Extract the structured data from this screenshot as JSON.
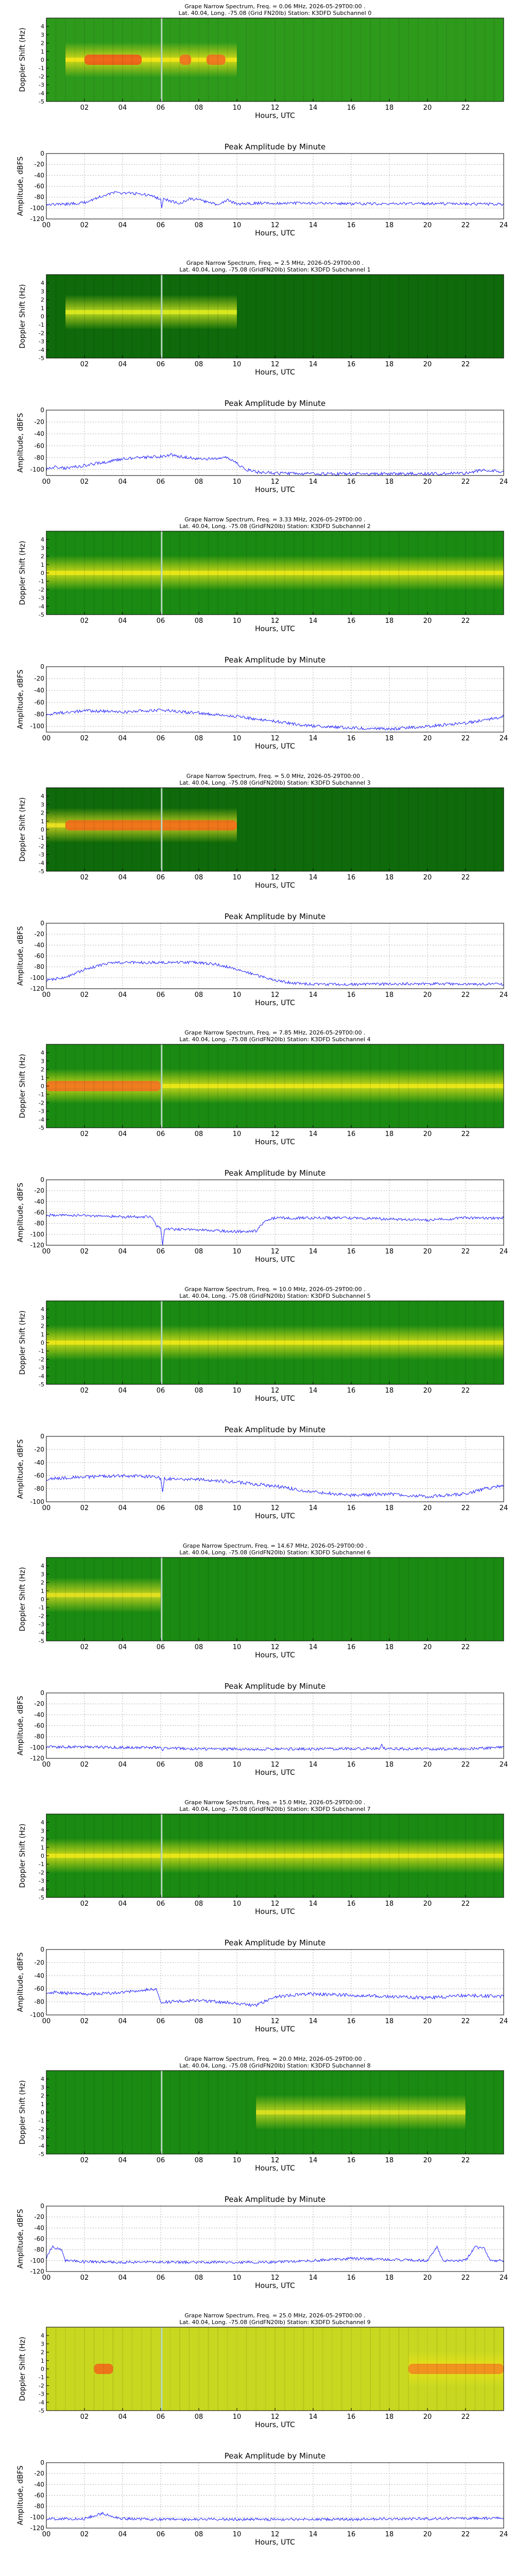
{
  "x_axis": {
    "label": "Hours, UTC",
    "range": [
      0,
      24
    ],
    "spectrum_ticks": [
      "02",
      "04",
      "06",
      "08",
      "10",
      "12",
      "14",
      "16",
      "18",
      "20",
      "22"
    ],
    "amplitude_ticks": [
      "00",
      "02",
      "04",
      "06",
      "08",
      "10",
      "12",
      "14",
      "16",
      "18",
      "20",
      "22",
      "24"
    ]
  },
  "spectrum_axis": {
    "label": "Doppler Shift (Hz)",
    "range": [
      -5,
      5
    ],
    "ticks": [
      "4",
      "3",
      "2",
      "1",
      "0",
      "-1",
      "-2",
      "-3",
      "-4",
      "-5"
    ]
  },
  "amplitude_axis": {
    "label": "Amplitude, dBFS"
  },
  "amplitude_title": "Peak Amplitude by Minute",
  "chart_data": [
    {
      "type": "heatmap",
      "title": "Grape Narrow Spectrum, Freq. = 0.06 MHz, 2026-05-29T00:00 .",
      "subtitle": "Lat. 40.04, Long. -75.08 (Grid FN20lb) Station: K3DFD Subchannel 0",
      "xlabel": "Hours, UTC",
      "ylabel": "Doppler Shift (Hz)",
      "xlim": [
        0,
        24
      ],
      "ylim": [
        -5,
        5
      ],
      "colors": [
        "#2e9a1c",
        "#f0e418"
      ],
      "band": {
        "hours": [
          1,
          10
        ],
        "doppler_hz": 0.0
      },
      "hotspots": [
        {
          "hours": [
            2,
            5
          ],
          "color": "#f05a1a"
        },
        {
          "hours": [
            7,
            7.6
          ],
          "color": "#f07020"
        },
        {
          "hours": [
            8.4,
            9.4
          ],
          "color": "#f07020"
        }
      ]
    },
    {
      "type": "line",
      "title": "Peak Amplitude by Minute",
      "xlabel": "Hours, UTC",
      "ylabel": "Amplitude, dBFS",
      "xlim": [
        0,
        24
      ],
      "ylim": [
        -120,
        0
      ],
      "y_ticks": [
        0,
        -20,
        -40,
        -60,
        -80,
        -100,
        -120
      ],
      "series": [
        {
          "x": [
            0,
            1,
            2,
            3,
            3.5,
            4,
            5,
            5.5,
            6,
            6.05,
            6.15,
            6.3,
            7,
            7.5,
            8,
            9,
            9.5,
            10,
            11,
            13,
            16,
            20,
            24
          ],
          "y": [
            -93,
            -93,
            -90,
            -77,
            -72,
            -72,
            -74,
            -78,
            -83,
            -100,
            -82,
            -85,
            -92,
            -83,
            -85,
            -94,
            -85,
            -93,
            -91,
            -91,
            -92,
            -92,
            -93
          ]
        }
      ]
    },
    {
      "type": "heatmap",
      "title": "Grape Narrow Spectrum, Freq. = 2.5 MHz, 2026-05-29T00:00 .",
      "subtitle": "Lat. 40.04, Long. -75.08 (GridFN20lb) Station: K3DFD Subchannel 1",
      "xlabel": "Hours, UTC",
      "ylabel": "Doppler Shift (Hz)",
      "xlim": [
        0,
        24
      ],
      "ylim": [
        -5,
        5
      ],
      "colors": [
        "#0e6a0a",
        "#d8e820"
      ],
      "band": {
        "hours": [
          1,
          10
        ],
        "doppler_hz": 0.5
      },
      "hotspots": []
    },
    {
      "type": "line",
      "title": "Peak Amplitude by Minute",
      "xlabel": "Hours, UTC",
      "ylabel": "Amplitude, dBFS",
      "xlim": [
        0,
        24
      ],
      "ylim": [
        -110,
        0
      ],
      "y_ticks": [
        0,
        -20,
        -40,
        -60,
        -80,
        -100
      ],
      "series": [
        {
          "x": [
            0,
            0.5,
            1,
            2,
            3,
            4,
            5,
            6,
            6.5,
            7,
            8,
            9,
            9.5,
            10,
            10.5,
            11,
            12,
            14,
            16,
            20,
            22,
            23,
            24
          ],
          "y": [
            -100,
            -95,
            -98,
            -93,
            -88,
            -82,
            -80,
            -78,
            -75,
            -78,
            -82,
            -82,
            -80,
            -90,
            -100,
            -104,
            -106,
            -107,
            -107,
            -107,
            -106,
            -100,
            -104
          ]
        }
      ]
    },
    {
      "type": "heatmap",
      "title": "Grape Narrow Spectrum, Freq. = 3.33 MHz, 2026-05-29T00:00 .",
      "subtitle": "Lat. 40.04, Long. -75.08 (GridFN20lb) Station: K3DFD Subchannel 2",
      "xlabel": "Hours, UTC",
      "ylabel": "Doppler Shift (Hz)",
      "xlim": [
        0,
        24
      ],
      "ylim": [
        -5,
        5
      ],
      "colors": [
        "#1a8a12",
        "#e8e618"
      ],
      "band": {
        "hours": [
          0,
          24
        ],
        "doppler_hz": 0.0
      },
      "hotspots": []
    },
    {
      "type": "line",
      "title": "Peak Amplitude by Minute",
      "xlabel": "Hours, UTC",
      "ylabel": "Amplitude, dBFS",
      "xlim": [
        0,
        24
      ],
      "ylim": [
        -110,
        0
      ],
      "y_ticks": [
        0,
        -20,
        -40,
        -60,
        -80,
        -100
      ],
      "series": [
        {
          "x": [
            0,
            2,
            4,
            6,
            8,
            10,
            12,
            14,
            16,
            18,
            20,
            22,
            24
          ],
          "y": [
            -80,
            -74,
            -76,
            -73,
            -78,
            -84,
            -92,
            -100,
            -103,
            -105,
            -100,
            -95,
            -84
          ]
        }
      ]
    },
    {
      "type": "heatmap",
      "title": "Grape Narrow Spectrum, Freq. = 5.0 MHz, 2026-05-29T00:00 .",
      "subtitle": "Lat. 40.04, Long. -75.08 (GridFN20lb) Station: K3DFD Subchannel 3",
      "xlabel": "Hours, UTC",
      "ylabel": "Doppler Shift (Hz)",
      "xlim": [
        0,
        24
      ],
      "ylim": [
        -5,
        5
      ],
      "colors": [
        "#0e6a0a",
        "#e8e020"
      ],
      "band": {
        "hours": [
          0,
          10
        ],
        "doppler_hz": 0.5
      },
      "hotspots": [
        {
          "hours": [
            1,
            10
          ],
          "color": "#f06a1a"
        }
      ]
    },
    {
      "type": "line",
      "title": "Peak Amplitude by Minute",
      "xlabel": "Hours, UTC",
      "ylabel": "Amplitude, dBFS",
      "xlim": [
        0,
        24
      ],
      "ylim": [
        -120,
        0
      ],
      "y_ticks": [
        0,
        -20,
        -40,
        -60,
        -80,
        -100,
        -120
      ],
      "series": [
        {
          "x": [
            0,
            1,
            2,
            3,
            4,
            6,
            8,
            9,
            10,
            11,
            12,
            13,
            14,
            16,
            20,
            24
          ],
          "y": [
            -104,
            -100,
            -85,
            -75,
            -72,
            -72,
            -72,
            -76,
            -84,
            -95,
            -105,
            -110,
            -112,
            -112,
            -111,
            -112
          ]
        }
      ]
    },
    {
      "type": "heatmap",
      "title": "Grape Narrow Spectrum, Freq. = 7.85 MHz, 2026-05-29T00:00 .",
      "subtitle": "Lat. 40.04, Long. -75.08 (GridFN20lb) Station: K3DFD Subchannel 4",
      "xlabel": "Hours, UTC",
      "ylabel": "Doppler Shift (Hz)",
      "xlim": [
        0,
        24
      ],
      "ylim": [
        -5,
        5
      ],
      "colors": [
        "#1a8a12",
        "#e8e618"
      ],
      "band": {
        "hours": [
          0,
          24
        ],
        "doppler_hz": 0.0
      },
      "hotspots": [
        {
          "hours": [
            0,
            6
          ],
          "color": "#f07020"
        }
      ]
    },
    {
      "type": "line",
      "title": "Peak Amplitude by Minute",
      "xlabel": "Hours, UTC",
      "ylabel": "Amplitude, dBFS",
      "xlim": [
        0,
        24
      ],
      "ylim": [
        -120,
        0
      ],
      "y_ticks": [
        0,
        -20,
        -40,
        -60,
        -80,
        -100,
        -120
      ],
      "series": [
        {
          "x": [
            0,
            2,
            4,
            5.5,
            5.8,
            6,
            6.1,
            6.2,
            8,
            10,
            11,
            11.5,
            12,
            14,
            16,
            18,
            20,
            22,
            24
          ],
          "y": [
            -65,
            -65,
            -68,
            -68,
            -85,
            -88,
            -120,
            -90,
            -92,
            -95,
            -94,
            -75,
            -70,
            -70,
            -70,
            -72,
            -74,
            -70,
            -70
          ]
        }
      ]
    },
    {
      "type": "heatmap",
      "title": "Grape Narrow Spectrum, Freq. = 10.0 MHz, 2026-05-29T00:00 .",
      "subtitle": "Lat. 40.04, Long. -75.08 (GridFN20lb) Station: K3DFD Subchannel 5",
      "xlabel": "Hours, UTC",
      "ylabel": "Doppler Shift (Hz)",
      "xlim": [
        0,
        24
      ],
      "ylim": [
        -5,
        5
      ],
      "colors": [
        "#1a8a12",
        "#e8e618"
      ],
      "band": {
        "hours": [
          0,
          24
        ],
        "doppler_hz": 0.0
      },
      "hotspots": []
    },
    {
      "type": "line",
      "title": "Peak Amplitude by Minute",
      "xlabel": "Hours, UTC",
      "ylabel": "Amplitude, dBFS",
      "xlim": [
        0,
        24
      ],
      "ylim": [
        -100,
        0
      ],
      "y_ticks": [
        0,
        -20,
        -40,
        -60,
        -80,
        -100
      ],
      "series": [
        {
          "x": [
            0,
            2,
            4,
            5.8,
            6,
            6.1,
            6.2,
            8,
            10,
            12,
            14,
            16,
            18,
            20,
            22,
            23,
            24
          ],
          "y": [
            -65,
            -62,
            -60,
            -62,
            -64,
            -85,
            -65,
            -66,
            -70,
            -76,
            -85,
            -90,
            -88,
            -92,
            -88,
            -80,
            -75
          ]
        }
      ]
    },
    {
      "type": "heatmap",
      "title": "Grape Narrow Spectrum, Freq. = 14.67 MHz, 2026-05-29T00:00 .",
      "subtitle": "Lat. 40.04, Long. -75.08 (GridFN20lb) Station: K3DFD Subchannel 6",
      "xlabel": "Hours, UTC",
      "ylabel": "Doppler Shift (Hz)",
      "xlim": [
        0,
        24
      ],
      "ylim": [
        -5,
        5
      ],
      "colors": [
        "#1a8a12",
        "#e0e020"
      ],
      "band": {
        "hours": [
          0,
          6
        ],
        "doppler_hz": 0.5
      },
      "hotspots": []
    },
    {
      "type": "line",
      "title": "Peak Amplitude by Minute",
      "xlabel": "Hours, UTC",
      "ylabel": "Amplitude, dBFS",
      "xlim": [
        0,
        24
      ],
      "ylim": [
        -120,
        0
      ],
      "y_ticks": [
        0,
        -20,
        -40,
        -60,
        -80,
        -100,
        -120
      ],
      "series": [
        {
          "x": [
            0,
            2,
            4,
            6,
            6.1,
            6.2,
            8,
            10,
            12,
            14,
            16,
            17.5,
            17.6,
            17.7,
            20,
            22,
            24
          ],
          "y": [
            -99,
            -99,
            -100,
            -100,
            -106,
            -101,
            -103,
            -103,
            -103,
            -103,
            -102,
            -102,
            -94,
            -102,
            -103,
            -103,
            -99
          ]
        }
      ]
    },
    {
      "type": "heatmap",
      "title": "Grape Narrow Spectrum, Freq. = 15.0 MHz, 2026-05-29T00:00 .",
      "subtitle": "Lat. 40.04, Long. -75.08 (GridFN20lb) Station: K3DFD Subchannel 7",
      "xlabel": "Hours, UTC",
      "ylabel": "Doppler Shift (Hz)",
      "xlim": [
        0,
        24
      ],
      "ylim": [
        -5,
        5
      ],
      "colors": [
        "#1a8a12",
        "#e8e618"
      ],
      "band": {
        "hours": [
          0,
          24
        ],
        "doppler_hz": 0.0
      },
      "hotspots": []
    },
    {
      "type": "line",
      "title": "Peak Amplitude by Minute",
      "xlabel": "Hours, UTC",
      "ylabel": "Amplitude, dBFS",
      "xlim": [
        0,
        24
      ],
      "ylim": [
        -100,
        0
      ],
      "y_ticks": [
        0,
        -20,
        -40,
        -60,
        -80,
        -100
      ],
      "series": [
        {
          "x": [
            0,
            2,
            4,
            5.5,
            5.8,
            6,
            8,
            10,
            11,
            12,
            14,
            16,
            18,
            20,
            22,
            24
          ],
          "y": [
            -65,
            -68,
            -66,
            -60,
            -62,
            -80,
            -78,
            -82,
            -86,
            -72,
            -68,
            -70,
            -72,
            -74,
            -70,
            -72
          ]
        }
      ]
    },
    {
      "type": "heatmap",
      "title": "Grape Narrow Spectrum, Freq. = 20.0 MHz, 2026-05-29T00:00 .",
      "subtitle": "Lat. 40.04, Long. -75.08 (GridFN20lb) Station: K3DFD Subchannel 8",
      "xlabel": "Hours, UTC",
      "ylabel": "Doppler Shift (Hz)",
      "xlim": [
        0,
        24
      ],
      "ylim": [
        -5,
        5
      ],
      "colors": [
        "#1a8a12",
        "#d8e020"
      ],
      "band": {
        "hours": [
          11,
          22
        ],
        "doppler_hz": 0.0
      },
      "hotspots": []
    },
    {
      "type": "line",
      "title": "Peak Amplitude by Minute",
      "xlabel": "Hours, UTC",
      "ylabel": "Amplitude, dBFS",
      "xlim": [
        0,
        24
      ],
      "ylim": [
        -120,
        0
      ],
      "y_ticks": [
        0,
        -20,
        -40,
        -60,
        -80,
        -100,
        -120
      ],
      "series": [
        {
          "x": [
            0,
            0.3,
            0.8,
            1,
            2,
            4,
            6,
            8,
            10,
            12,
            14,
            16,
            18,
            20,
            20.5,
            20.8,
            21.5,
            22,
            22.5,
            23,
            23.3,
            24
          ],
          "y": [
            -95,
            -75,
            -80,
            -100,
            -102,
            -103,
            -103,
            -103,
            -103,
            -103,
            -100,
            -96,
            -98,
            -100,
            -75,
            -100,
            -100,
            -100,
            -75,
            -78,
            -100,
            -100
          ]
        }
      ]
    },
    {
      "type": "heatmap",
      "title": "Grape Narrow Spectrum, Freq. = 25.0 MHz, 2026-05-29T00:00 .",
      "subtitle": "Lat. 40.04, Long. -75.08 (GridFN20lb) Station: K3DFD Subchannel 9",
      "xlabel": "Hours, UTC",
      "ylabel": "Doppler Shift (Hz)",
      "xlim": [
        0,
        24
      ],
      "ylim": [
        -5,
        5
      ],
      "colors": [
        "#c8d820",
        "#f0e418"
      ],
      "band": {
        "hours": [
          19,
          24
        ],
        "doppler_hz": 0.0
      },
      "hotspots": [
        {
          "hours": [
            2.5,
            3.5
          ],
          "color": "#f06a1a"
        },
        {
          "hours": [
            19,
            24
          ],
          "color": "#f08a20"
        }
      ]
    },
    {
      "type": "line",
      "title": "Peak Amplitude by Minute",
      "xlabel": "Hours, UTC",
      "ylabel": "Amplitude, dBFS",
      "xlim": [
        0,
        24
      ],
      "ylim": [
        -120,
        0
      ],
      "y_ticks": [
        0,
        -20,
        -40,
        -60,
        -80,
        -100,
        -120
      ],
      "series": [
        {
          "x": [
            0,
            2,
            2.5,
            3,
            3.5,
            4,
            6,
            8,
            10,
            12,
            14,
            16,
            18,
            20,
            22,
            24
          ],
          "y": [
            -103,
            -103,
            -97,
            -93,
            -100,
            -103,
            -104,
            -104,
            -104,
            -104,
            -104,
            -104,
            -103,
            -103,
            -102,
            -102
          ]
        }
      ]
    }
  ]
}
